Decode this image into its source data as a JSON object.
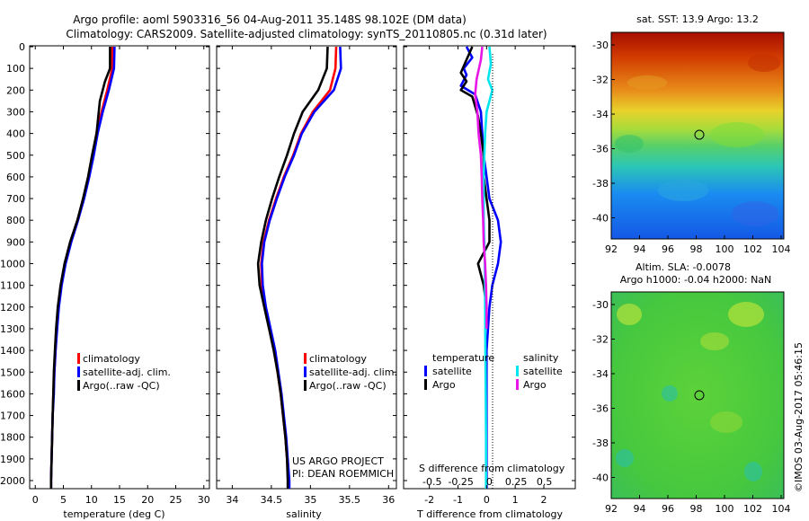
{
  "header": {
    "line1": "Argo profile: aoml 5903316_56 04-Aug-2011 35.148S 98.102E (DM data)",
    "line2": "Climatology: CARS2009. Satellite-adjusted climatology: synTS_20110805.nc (0.31d later)"
  },
  "colors": {
    "red": "#ff0000",
    "blue": "#0000ff",
    "black": "#000000",
    "cyan": "#00e5ee",
    "magenta": "#e817e8"
  },
  "depth_ticks": [
    0,
    100,
    200,
    300,
    400,
    500,
    600,
    700,
    800,
    900,
    1000,
    1100,
    1200,
    1300,
    1400,
    1500,
    1600,
    1700,
    1800,
    1900,
    2000
  ],
  "legend_tc": {
    "climatology": "climatology",
    "satellite": "satellite-adj. clim.",
    "argo": "Argo(..raw -QC)"
  },
  "legend_diff": {
    "temperature": "temperature",
    "salinity": "salinity",
    "satellite": "satellite",
    "argo": "Argo"
  },
  "project": {
    "line1": "US ARGO PROJECT",
    "line2": "PI: DEAN ROEMMICH"
  },
  "diff_labels": {
    "s_label": "S difference from climatology",
    "s_ticks": "-0.5  -0.25    0    0.25   0.5"
  },
  "maps": {
    "sst_title": "sat. SST: 13.9 Argo: 13.2",
    "sla_title1": "Altim. SLA: -0.0078",
    "sla_title2": "Argo h1000: -0.04 h2000: NaN",
    "lat_ticks": [
      "-30",
      "-32",
      "-34",
      "-36",
      "-38",
      "-40"
    ],
    "lon_ticks": [
      "92",
      "94",
      "96",
      "98",
      "100",
      "102",
      "104"
    ]
  },
  "footer": "©IMOS 03-Aug-2017 05:46:15",
  "chart_data": [
    {
      "type": "line",
      "xlabel": "temperature (deg C)",
      "ylim": [
        2050,
        0
      ],
      "xlim": [
        -1,
        31
      ],
      "xticks": [
        0,
        5,
        10,
        15,
        20,
        25,
        30
      ],
      "series": [
        {
          "name": "climatology",
          "color": "red",
          "points": [
            [
              13.7,
              0
            ],
            [
              13.7,
              100
            ],
            [
              12.8,
              200
            ],
            [
              11.8,
              300
            ],
            [
              10.9,
              400
            ],
            [
              10.2,
              500
            ],
            [
              9.5,
              600
            ],
            [
              8.6,
              700
            ],
            [
              7.5,
              800
            ],
            [
              6.3,
              900
            ],
            [
              5.3,
              1000
            ],
            [
              4.6,
              1100
            ],
            [
              4.1,
              1200
            ],
            [
              3.8,
              1300
            ],
            [
              3.6,
              1400
            ],
            [
              3.4,
              1500
            ],
            [
              3.2,
              1600
            ],
            [
              3.1,
              1700
            ],
            [
              3.0,
              1800
            ],
            [
              2.9,
              1900
            ],
            [
              2.8,
              2000
            ],
            [
              2.8,
              2060
            ]
          ]
        },
        {
          "name": "satellite-adj. clim.",
          "color": "blue",
          "points": [
            [
              14.1,
              0
            ],
            [
              14.0,
              100
            ],
            [
              13.1,
              200
            ],
            [
              12.0,
              300
            ],
            [
              11.1,
              400
            ],
            [
              10.4,
              500
            ],
            [
              9.6,
              600
            ],
            [
              8.7,
              700
            ],
            [
              7.6,
              800
            ],
            [
              6.4,
              900
            ],
            [
              5.4,
              1000
            ],
            [
              4.7,
              1100
            ],
            [
              4.2,
              1200
            ],
            [
              3.9,
              1300
            ],
            [
              3.6,
              1400
            ],
            [
              3.4,
              1500
            ],
            [
              3.3,
              1600
            ],
            [
              3.1,
              1700
            ],
            [
              3.0,
              1800
            ],
            [
              2.9,
              1900
            ],
            [
              2.8,
              2000
            ],
            [
              2.8,
              2060
            ]
          ]
        },
        {
          "name": "Argo(..raw -QC)",
          "color": "black",
          "points": [
            [
              13.3,
              0
            ],
            [
              13.3,
              100
            ],
            [
              12.4,
              160
            ],
            [
              11.5,
              250
            ],
            [
              10.9,
              400
            ],
            [
              10.1,
              500
            ],
            [
              9.4,
              600
            ],
            [
              8.5,
              700
            ],
            [
              7.5,
              800
            ],
            [
              6.2,
              900
            ],
            [
              5.2,
              1000
            ],
            [
              4.5,
              1100
            ],
            [
              4.0,
              1200
            ],
            [
              3.7,
              1300
            ],
            [
              3.5,
              1400
            ],
            [
              3.3,
              1500
            ],
            [
              3.2,
              1600
            ],
            [
              3.1,
              1700
            ],
            [
              3.0,
              1800
            ],
            [
              2.9,
              1900
            ],
            [
              2.8,
              2000
            ],
            [
              2.8,
              2060
            ]
          ]
        }
      ]
    },
    {
      "type": "line",
      "xlabel": "salinity",
      "ylim": [
        2050,
        0
      ],
      "xlim": [
        33.8,
        36.1
      ],
      "xticks": [
        34,
        34.5,
        35,
        35.5,
        36
      ],
      "series": [
        {
          "name": "climatology",
          "color": "red",
          "points": [
            [
              35.33,
              0
            ],
            [
              35.32,
              100
            ],
            [
              35.25,
              200
            ],
            [
              35.03,
              300
            ],
            [
              34.88,
              400
            ],
            [
              34.78,
              500
            ],
            [
              34.66,
              600
            ],
            [
              34.56,
              700
            ],
            [
              34.47,
              800
            ],
            [
              34.4,
              900
            ],
            [
              34.37,
              1000
            ],
            [
              34.38,
              1100
            ],
            [
              34.42,
              1200
            ],
            [
              34.48,
              1300
            ],
            [
              34.54,
              1400
            ],
            [
              34.58,
              1500
            ],
            [
              34.62,
              1600
            ],
            [
              34.65,
              1700
            ],
            [
              34.68,
              1800
            ],
            [
              34.7,
              1900
            ],
            [
              34.72,
              2000
            ],
            [
              34.72,
              2060
            ]
          ]
        },
        {
          "name": "satellite-adj. clim.",
          "color": "blue",
          "points": [
            [
              35.38,
              0
            ],
            [
              35.39,
              100
            ],
            [
              35.3,
              200
            ],
            [
              35.05,
              300
            ],
            [
              34.89,
              400
            ],
            [
              34.79,
              500
            ],
            [
              34.67,
              600
            ],
            [
              34.57,
              700
            ],
            [
              34.48,
              800
            ],
            [
              34.41,
              900
            ],
            [
              34.38,
              1000
            ],
            [
              34.39,
              1100
            ],
            [
              34.43,
              1200
            ],
            [
              34.49,
              1300
            ],
            [
              34.55,
              1400
            ],
            [
              34.59,
              1500
            ],
            [
              34.63,
              1600
            ],
            [
              34.66,
              1700
            ],
            [
              34.69,
              1800
            ],
            [
              34.71,
              1900
            ],
            [
              34.73,
              2000
            ],
            [
              34.73,
              2060
            ]
          ]
        },
        {
          "name": "Argo(..raw -QC)",
          "color": "black",
          "points": [
            [
              35.22,
              0
            ],
            [
              35.21,
              100
            ],
            [
              35.1,
              200
            ],
            [
              34.9,
              300
            ],
            [
              34.79,
              400
            ],
            [
              34.7,
              500
            ],
            [
              34.6,
              600
            ],
            [
              34.51,
              700
            ],
            [
              34.43,
              800
            ],
            [
              34.37,
              900
            ],
            [
              34.33,
              1000
            ],
            [
              34.35,
              1100
            ],
            [
              34.41,
              1200
            ],
            [
              34.47,
              1300
            ],
            [
              34.53,
              1400
            ],
            [
              34.58,
              1500
            ],
            [
              34.62,
              1600
            ],
            [
              34.65,
              1700
            ],
            [
              34.68,
              1800
            ],
            [
              34.7,
              1900
            ],
            [
              34.71,
              2000
            ],
            [
              34.71,
              2060
            ]
          ]
        }
      ]
    },
    {
      "type": "line",
      "xlabel": "T difference from climatology",
      "ylim": [
        2050,
        0
      ],
      "xlim": [
        -2.9,
        3.1
      ],
      "xticks": [
        -2,
        -1,
        0,
        1,
        2
      ],
      "series": [
        {
          "name": "temperature satellite",
          "color": "blue",
          "points": [
            [
              -0.7,
              0
            ],
            [
              -0.5,
              50
            ],
            [
              -0.8,
              100
            ],
            [
              -0.7,
              130
            ],
            [
              -0.9,
              180
            ],
            [
              -0.4,
              220
            ],
            [
              -0.2,
              300
            ],
            [
              -0.15,
              400
            ],
            [
              -0.1,
              500
            ],
            [
              0.0,
              600
            ],
            [
              0.1,
              700
            ],
            [
              0.4,
              800
            ],
            [
              0.5,
              900
            ],
            [
              0.4,
              1000
            ],
            [
              0.2,
              1100
            ],
            [
              0.1,
              1200
            ],
            [
              0.05,
              1300
            ],
            [
              0.0,
              1400
            ],
            [
              0.0,
              1600
            ],
            [
              0.0,
              2060
            ]
          ]
        },
        {
          "name": "temperature Argo",
          "color": "black",
          "points": [
            [
              -0.5,
              0
            ],
            [
              -0.7,
              60
            ],
            [
              -0.9,
              120
            ],
            [
              -0.7,
              160
            ],
            [
              -0.9,
              200
            ],
            [
              -0.5,
              230
            ],
            [
              -0.3,
              320
            ],
            [
              -0.2,
              400
            ],
            [
              -0.1,
              500
            ],
            [
              -0.1,
              600
            ],
            [
              0.0,
              700
            ],
            [
              0.1,
              800
            ],
            [
              0.1,
              900
            ],
            [
              -0.3,
              1000
            ],
            [
              -0.1,
              1100
            ],
            [
              0.0,
              1200
            ],
            [
              0.0,
              1300
            ]
          ]
        },
        {
          "name": "salinity satellite",
          "color": "cyan",
          "points": [
            [
              0.1,
              0
            ],
            [
              0.15,
              80
            ],
            [
              0.05,
              150
            ],
            [
              0.2,
              200
            ],
            [
              0.0,
              300
            ],
            [
              -0.05,
              400
            ],
            [
              -0.08,
              500
            ],
            [
              -0.1,
              600
            ],
            [
              -0.1,
              700
            ],
            [
              -0.1,
              800
            ],
            [
              -0.08,
              900
            ],
            [
              -0.06,
              1000
            ],
            [
              -0.05,
              1200
            ],
            [
              -0.04,
              1400
            ],
            [
              -0.03,
              1600
            ],
            [
              -0.02,
              1800
            ],
            [
              -0.02,
              2060
            ]
          ]
        },
        {
          "name": "salinity Argo",
          "color": "magenta",
          "points": [
            [
              -0.15,
              0
            ],
            [
              -0.2,
              60
            ],
            [
              -0.35,
              150
            ],
            [
              -0.4,
              220
            ],
            [
              -0.32,
              300
            ],
            [
              -0.28,
              400
            ],
            [
              -0.2,
              500
            ],
            [
              -0.17,
              600
            ],
            [
              -0.15,
              700
            ],
            [
              -0.12,
              800
            ],
            [
              -0.1,
              900
            ],
            [
              -0.05,
              1000
            ],
            [
              -0.02,
              1100
            ],
            [
              0.0,
              1200
            ],
            [
              0.0,
              1300
            ]
          ]
        }
      ]
    }
  ]
}
